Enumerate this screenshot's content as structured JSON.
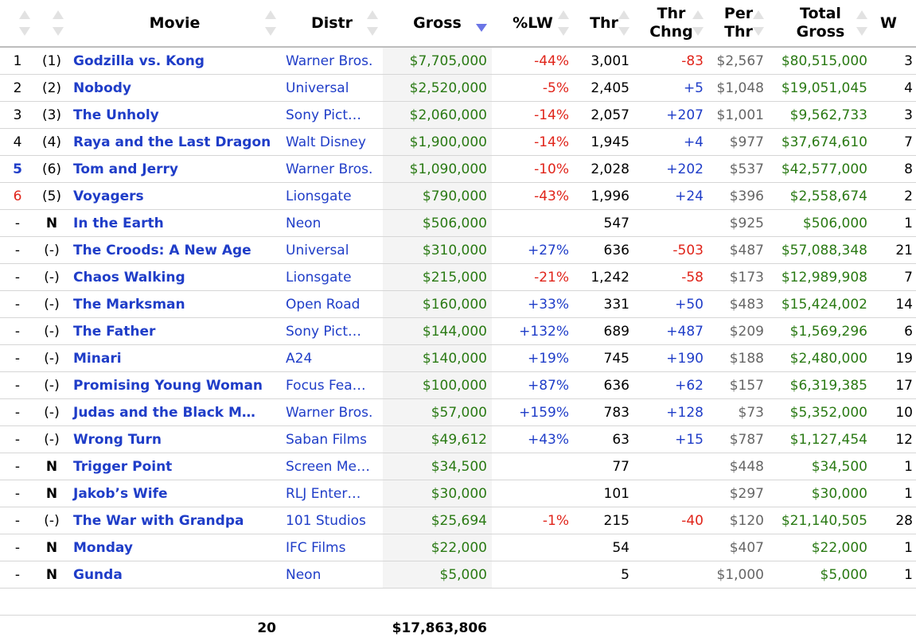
{
  "headers": {
    "movie": "Movie",
    "distr": "Distr",
    "gross": "Gross",
    "lw": "%LW",
    "thr": "Thr",
    "thr_chng_1": "Thr",
    "thr_chng_2": "Chng",
    "per_thr_1": "Per",
    "per_thr_2": "Thr",
    "total_gross_1": "Total",
    "total_gross_2": "Gross",
    "weeks": "W"
  },
  "rows": [
    {
      "rank": "1",
      "prev": "(1)",
      "title": "Godzilla vs. Kong",
      "distr": "Warner Bros.",
      "gross": "$7,705,000",
      "lw": "-44%",
      "thr": "3,001",
      "chg": "-83",
      "per": "$2,567",
      "total": "$80,515,000",
      "weeks": "3"
    },
    {
      "rank": "2",
      "prev": "(2)",
      "title": "Nobody",
      "distr": "Universal",
      "gross": "$2,520,000",
      "lw": "-5%",
      "thr": "2,405",
      "chg": "+5",
      "per": "$1,048",
      "total": "$19,051,045",
      "weeks": "4"
    },
    {
      "rank": "3",
      "prev": "(3)",
      "title": "The Unholy",
      "distr": "Sony Pict…",
      "gross": "$2,060,000",
      "lw": "-14%",
      "thr": "2,057",
      "chg": "+207",
      "per": "$1,001",
      "total": "$9,562,733",
      "weeks": "3"
    },
    {
      "rank": "4",
      "prev": "(4)",
      "title": "Raya and the Last Dragon",
      "distr": "Walt Disney",
      "gross": "$1,900,000",
      "lw": "-14%",
      "thr": "1,945",
      "chg": "+4",
      "per": "$977",
      "total": "$37,674,610",
      "weeks": "7"
    },
    {
      "rank": "5",
      "prev": "(6)",
      "title": "Tom and Jerry",
      "distr": "Warner Bros.",
      "gross": "$1,090,000",
      "lw": "-10%",
      "thr": "2,028",
      "chg": "+202",
      "per": "$537",
      "total": "$42,577,000",
      "weeks": "8"
    },
    {
      "rank": "6",
      "prev": "(5)",
      "title": "Voyagers",
      "distr": "Lionsgate",
      "gross": "$790,000",
      "lw": "-43%",
      "thr": "1,996",
      "chg": "+24",
      "per": "$396",
      "total": "$2,558,674",
      "weeks": "2"
    },
    {
      "rank": "-",
      "prev": "N",
      "title": "In the Earth",
      "distr": "Neon",
      "gross": "$506,000",
      "lw": "",
      "thr": "547",
      "chg": "",
      "per": "$925",
      "total": "$506,000",
      "weeks": "1"
    },
    {
      "rank": "-",
      "prev": "(-)",
      "title": "The Croods: A New Age",
      "distr": "Universal",
      "gross": "$310,000",
      "lw": "+27%",
      "thr": "636",
      "chg": "-503",
      "per": "$487",
      "total": "$57,088,348",
      "weeks": "21"
    },
    {
      "rank": "-",
      "prev": "(-)",
      "title": "Chaos Walking",
      "distr": "Lionsgate",
      "gross": "$215,000",
      "lw": "-21%",
      "thr": "1,242",
      "chg": "-58",
      "per": "$173",
      "total": "$12,989,908",
      "weeks": "7"
    },
    {
      "rank": "-",
      "prev": "(-)",
      "title": "The Marksman",
      "distr": "Open Road",
      "gross": "$160,000",
      "lw": "+33%",
      "thr": "331",
      "chg": "+50",
      "per": "$483",
      "total": "$15,424,002",
      "weeks": "14"
    },
    {
      "rank": "-",
      "prev": "(-)",
      "title": "The Father",
      "distr": "Sony Pict…",
      "gross": "$144,000",
      "lw": "+132%",
      "thr": "689",
      "chg": "+487",
      "per": "$209",
      "total": "$1,569,296",
      "weeks": "6"
    },
    {
      "rank": "-",
      "prev": "(-)",
      "title": "Minari",
      "distr": "A24",
      "gross": "$140,000",
      "lw": "+19%",
      "thr": "745",
      "chg": "+190",
      "per": "$188",
      "total": "$2,480,000",
      "weeks": "19"
    },
    {
      "rank": "-",
      "prev": "(-)",
      "title": "Promising Young Woman",
      "distr": "Focus Fea…",
      "gross": "$100,000",
      "lw": "+87%",
      "thr": "636",
      "chg": "+62",
      "per": "$157",
      "total": "$6,319,385",
      "weeks": "17"
    },
    {
      "rank": "-",
      "prev": "(-)",
      "title": "Judas and the Black M…",
      "distr": "Warner Bros.",
      "gross": "$57,000",
      "lw": "+159%",
      "thr": "783",
      "chg": "+128",
      "per": "$73",
      "total": "$5,352,000",
      "weeks": "10"
    },
    {
      "rank": "-",
      "prev": "(-)",
      "title": "Wrong Turn",
      "distr": "Saban Films",
      "gross": "$49,612",
      "lw": "+43%",
      "thr": "63",
      "chg": "+15",
      "per": "$787",
      "total": "$1,127,454",
      "weeks": "12"
    },
    {
      "rank": "-",
      "prev": "N",
      "title": "Trigger Point",
      "distr": "Screen Me…",
      "gross": "$34,500",
      "lw": "",
      "thr": "77",
      "chg": "",
      "per": "$448",
      "total": "$34,500",
      "weeks": "1"
    },
    {
      "rank": "-",
      "prev": "N",
      "title": "Jakob’s Wife",
      "distr": "RLJ Enter…",
      "gross": "$30,000",
      "lw": "",
      "thr": "101",
      "chg": "",
      "per": "$297",
      "total": "$30,000",
      "weeks": "1"
    },
    {
      "rank": "-",
      "prev": "(-)",
      "title": "The War with Grandpa",
      "distr": "101 Studios",
      "gross": "$25,694",
      "lw": "-1%",
      "thr": "215",
      "chg": "-40",
      "per": "$120",
      "total": "$21,140,505",
      "weeks": "28"
    },
    {
      "rank": "-",
      "prev": "N",
      "title": "Monday",
      "distr": "IFC Films",
      "gross": "$22,000",
      "lw": "",
      "thr": "54",
      "chg": "",
      "per": "$407",
      "total": "$22,000",
      "weeks": "1"
    },
    {
      "rank": "-",
      "prev": "N",
      "title": "Gunda",
      "distr": "Neon",
      "gross": "$5,000",
      "lw": "",
      "thr": "5",
      "chg": "",
      "per": "$1,000",
      "total": "$5,000",
      "weeks": "1"
    }
  ],
  "footer": {
    "count": "20",
    "total_gross": "$17,863,806"
  },
  "colors": {
    "link": "#1f3dc8",
    "negative": "#e0241a",
    "money": "#2a7a14",
    "sort_active": "#6b75e6"
  }
}
